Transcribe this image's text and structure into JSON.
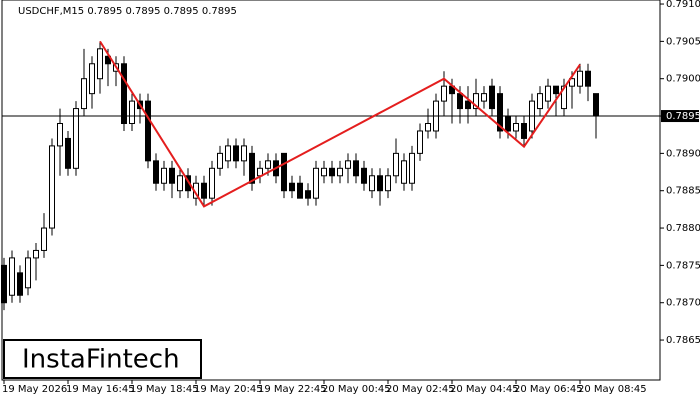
{
  "chart_data": {
    "type": "candlestick",
    "title": "USDCHF,M15  0.7895 0.7895 0.7895 0.7895",
    "categories": [
      "19 May 2026",
      null,
      null,
      null,
      null,
      null,
      null,
      null,
      "19 May 16:45",
      null,
      null,
      null,
      null,
      null,
      null,
      null,
      "19 May 18:45",
      null,
      null,
      null,
      null,
      null,
      null,
      null,
      "19 May 20:45",
      null,
      null,
      null,
      null,
      null,
      null,
      null,
      "19 May 22:45",
      null,
      null,
      null,
      null,
      null,
      null,
      null,
      "20 May 00:45",
      null,
      null,
      null,
      null,
      null,
      null,
      null,
      "20 May 02:45",
      null,
      null,
      null,
      null,
      null,
      null,
      null,
      "20 May 04:45",
      null,
      null,
      null,
      null,
      null,
      null,
      null,
      "20 May 06:45",
      null,
      null,
      null,
      null,
      null,
      null,
      null,
      "20 May 08:45",
      null,
      null
    ],
    "open": [
      0.7875,
      0.7871,
      0.7874,
      0.7872,
      0.7876,
      0.7877,
      0.788,
      0.7891,
      0.7892,
      0.7888,
      0.7896,
      0.7898,
      0.79,
      0.7903,
      0.7901,
      0.7902,
      0.7894,
      0.7897,
      0.7897,
      0.7889,
      0.7886,
      0.7888,
      0.7885,
      0.7887,
      0.7884,
      0.7886,
      0.7884,
      0.7888,
      0.7889,
      0.7891,
      0.7889,
      0.789,
      0.7887,
      0.7888,
      0.7889,
      0.789,
      0.7886,
      0.7886,
      0.7885,
      0.7884,
      0.7887,
      0.7888,
      0.7887,
      0.7888,
      0.7889,
      0.7888,
      0.7885,
      0.7887,
      0.7885,
      0.7887,
      0.7886,
      0.7886,
      0.789,
      0.7893,
      0.7893,
      0.7897,
      0.7899,
      0.7898,
      0.7897,
      0.7896,
      0.7897,
      0.7899,
      0.7898,
      0.7895,
      0.7893,
      0.7894,
      0.7893,
      0.7896,
      0.7897,
      0.7899,
      0.7896,
      0.7899,
      0.7899,
      0.7901,
      0.7898
    ],
    "high": [
      0.7876,
      0.7877,
      0.7875,
      0.7877,
      0.7878,
      0.7882,
      0.7892,
      0.7896,
      0.7893,
      0.7897,
      0.7904,
      0.7903,
      0.7905,
      0.7904,
      0.7903,
      0.7903,
      0.7898,
      0.7898,
      0.7898,
      0.789,
      0.7889,
      0.7889,
      0.7888,
      0.7888,
      0.7887,
      0.7887,
      0.7889,
      0.7891,
      0.7892,
      0.7892,
      0.7892,
      0.7891,
      0.7889,
      0.789,
      0.789,
      0.789,
      0.7887,
      0.7887,
      0.7886,
      0.7889,
      0.7889,
      0.7889,
      0.7889,
      0.789,
      0.789,
      0.7889,
      0.7888,
      0.7888,
      0.7888,
      0.7892,
      0.789,
      0.7891,
      0.7894,
      0.7896,
      0.7898,
      0.7901,
      0.79,
      0.7899,
      0.7899,
      0.79,
      0.7899,
      0.79,
      0.7899,
      0.7896,
      0.7895,
      0.7895,
      0.7898,
      0.7899,
      0.79,
      0.7899,
      0.79,
      0.7901,
      0.7902,
      0.7902,
      0.7898
    ],
    "low": [
      0.7869,
      0.787,
      0.787,
      0.7871,
      0.7873,
      0.7876,
      0.7879,
      0.7887,
      0.7887,
      0.7887,
      0.7895,
      0.7896,
      0.7898,
      0.7899,
      0.7899,
      0.7893,
      0.7893,
      0.7894,
      0.7888,
      0.7885,
      0.7885,
      0.7884,
      0.7884,
      0.7884,
      0.7883,
      0.7883,
      0.7883,
      0.7887,
      0.7888,
      0.7888,
      0.7887,
      0.7885,
      0.7886,
      0.7887,
      0.7886,
      0.7884,
      0.7884,
      0.7884,
      0.7883,
      0.7883,
      0.7886,
      0.7886,
      0.7886,
      0.7886,
      0.7886,
      0.7885,
      0.7884,
      0.7883,
      0.7884,
      0.7886,
      0.7885,
      0.7885,
      0.7889,
      0.7892,
      0.7892,
      0.7895,
      0.7894,
      0.7894,
      0.7894,
      0.7895,
      0.7896,
      0.7895,
      0.7892,
      0.7892,
      0.7892,
      0.7891,
      0.7892,
      0.7895,
      0.7896,
      0.7895,
      0.7895,
      0.7896,
      0.7898,
      0.7897,
      0.7892
    ],
    "close": [
      0.787,
      0.7876,
      0.7871,
      0.7876,
      0.7877,
      0.788,
      0.7891,
      0.7894,
      0.7888,
      0.7896,
      0.79,
      0.7902,
      0.7904,
      0.7902,
      0.7902,
      0.7894,
      0.7897,
      0.7896,
      0.7889,
      0.7886,
      0.7888,
      0.7886,
      0.7887,
      0.7885,
      0.7886,
      0.7884,
      0.7888,
      0.789,
      0.7891,
      0.7889,
      0.7891,
      0.7886,
      0.7888,
      0.7889,
      0.7887,
      0.7885,
      0.7885,
      0.7884,
      0.7884,
      0.7888,
      0.7888,
      0.7887,
      0.7888,
      0.7889,
      0.7887,
      0.7886,
      0.7887,
      0.7885,
      0.7887,
      0.789,
      0.7889,
      0.789,
      0.7893,
      0.7894,
      0.7897,
      0.7899,
      0.7898,
      0.7896,
      0.7896,
      0.7898,
      0.7898,
      0.7896,
      0.7893,
      0.7893,
      0.7894,
      0.7892,
      0.7897,
      0.7898,
      0.7899,
      0.7898,
      0.7899,
      0.79,
      0.7901,
      0.7899,
      0.7895
    ],
    "ylim": [
      0.785965,
      0.791054
    ],
    "yticks": [
      {
        "value": 0.791,
        "label": "0.7910"
      },
      0.7905,
      {
        "value": 0.79,
        "label": "0.7900"
      },
      0.7895,
      {
        "value": 0.789,
        "label": "0.7890"
      },
      0.7885,
      {
        "value": 0.788,
        "label": "0.7880"
      },
      0.7875,
      {
        "value": 0.787,
        "label": "0.7870"
      },
      0.7865
    ],
    "current_price": {
      "value": 0.7895,
      "label": "0.7895"
    },
    "pattern": {
      "color": "#e41e1e",
      "x": [
        12,
        25,
        55,
        65,
        72
      ],
      "y": [
        0.7905,
        0.78829,
        0.79,
        0.78909,
        0.79019
      ]
    },
    "logo": "InstaFintech"
  }
}
